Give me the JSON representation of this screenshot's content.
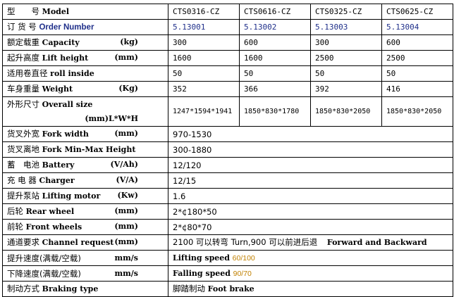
{
  "header": {
    "cn": "型　　号",
    "en": "Model",
    "models": [
      "CTS0316-CZ",
      "CTS0616-CZ",
      "CTS0325-CZ",
      "CTS0625-CZ"
    ]
  },
  "rows": [
    {
      "cn": "订 货 号",
      "en": "Order Number",
      "unit": "",
      "values": [
        "5.13001",
        "5.13002",
        "5.13003",
        "5.13004"
      ]
    },
    {
      "cn": "额定载重",
      "en": "Capacity",
      "unit": "(kg)",
      "values": [
        "300",
        "600",
        "300",
        "600"
      ]
    },
    {
      "cn": "起升高度",
      "en": "Lift height",
      "unit": "(mm)",
      "values": [
        "1600",
        "1600",
        "2500",
        "2500"
      ]
    },
    {
      "cn": "适用卷直径",
      "en": "roll inside",
      "unit": "",
      "values": [
        "50",
        "50",
        "50",
        "50"
      ]
    },
    {
      "cn": "车身重量",
      "en": "Weight",
      "unit": "(Kg)",
      "values": [
        "352",
        "366",
        "392",
        "416"
      ]
    },
    {
      "cn": "外形尺寸",
      "en": "Overall size",
      "unit": "(mm)L*W*H",
      "values": [
        "1247*1594*1941",
        "1850*830*1780",
        "1850*830*2050",
        "1850*830*2050"
      ]
    }
  ],
  "shared": [
    {
      "cn": "货叉外宽",
      "en": "Fork width",
      "unit": "(mm)",
      "value": "970-1530"
    },
    {
      "cn": "货叉离地",
      "en": "Fork Min-Max Height",
      "unit": "",
      "value": "300-1880"
    },
    {
      "cn": "蓄　电池",
      "en": "Battery",
      "unit": "(V/Ah)",
      "value": "12/120"
    },
    {
      "cn": "充 电 器",
      "en": "Charger",
      "unit": "(V/A)",
      "value": "12/15"
    },
    {
      "cn": "提升泵站",
      "en": "Lifting motor",
      "unit": "(Kw)",
      "value": "1.6"
    },
    {
      "cn": "后轮",
      "en": "Rear wheel",
      "unit": "(mm)",
      "value": "2*¢180*50"
    },
    {
      "cn": "前轮",
      "en": "Front wheels",
      "unit": "(mm)",
      "value": "2*¢80*70"
    },
    {
      "cn": "通道要求",
      "en": "Channel request",
      "unit": "(mm)",
      "value": "2100 可以转弯 Turn,900 可以前进后退",
      "value_en": "Forward and Backward"
    },
    {
      "cn": "提升速度(满载/空载)",
      "en": "",
      "unit": "mm/s",
      "value": "Lifting speed",
      "speed": "60/100"
    },
    {
      "cn": "下降速度(满载/空载)",
      "en": "",
      "unit": "mm/s",
      "value": "Falling speed",
      "speed": "90/70"
    },
    {
      "cn": "制动方式",
      "en": "Braking type",
      "unit": "",
      "value": "脚踏制动",
      "value_en": "Foot brake"
    }
  ],
  "colors": {
    "order_number": "#1f2f8a",
    "speed": "#c08000"
  }
}
